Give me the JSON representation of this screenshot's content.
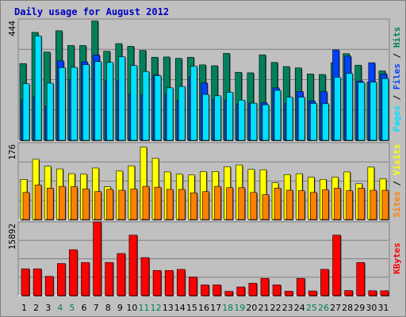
{
  "title": "Daily usage for August 2012",
  "colors": {
    "hits": "#00805c",
    "files": "#0040ff",
    "pages": "#00e0ff",
    "visits": "#ffff00",
    "sites": "#ff8000",
    "kbytes": "#ff0000",
    "weekend_day": "#00805c",
    "weekday": "#000000",
    "panel": "#c0c0c0",
    "grid": "#808080",
    "title": "#0000c0"
  },
  "chart_data": [
    {
      "type": "bar",
      "x": [
        1,
        2,
        3,
        4,
        5,
        6,
        7,
        8,
        9,
        10,
        11,
        12,
        13,
        14,
        15,
        16,
        17,
        18,
        19,
        20,
        21,
        22,
        23,
        24,
        25,
        26,
        27,
        28,
        29,
        30,
        31
      ],
      "weekend_days": [
        4,
        5,
        11,
        12,
        18,
        19,
        25,
        26
      ],
      "ymax_label": "444",
      "ylim": [
        0,
        444
      ],
      "right_label": [
        {
          "text": "Pages",
          "color_key": "pages"
        },
        {
          "text": " / ",
          "color_key": "weekday"
        },
        {
          "text": "Files",
          "color_key": "files"
        },
        {
          "text": " / ",
          "color_key": "weekday"
        },
        {
          "text": "Hits",
          "color_key": "hits"
        }
      ],
      "series": [
        {
          "name": "Hits",
          "color_key": "hits",
          "values": [
            281,
            395,
            323,
            401,
            347,
            347,
            437,
            326,
            354,
            344,
            329,
            304,
            305,
            300,
            304,
            276,
            273,
            318,
            249,
            247,
            313,
            285,
            270,
            265,
            243,
            241,
            284,
            317,
            275,
            213,
            254
          ]
        },
        {
          "name": "Files",
          "color_key": "files",
          "values": [
            148,
            159,
            124,
            291,
            223,
            287,
            312,
            218,
            219,
            169,
            166,
            239,
            170,
            147,
            233,
            210,
            149,
            147,
            133,
            136,
            137,
            192,
            135,
            179,
            144,
            178,
            331,
            308,
            217,
            284,
            243
          ]
        },
        {
          "name": "Pages",
          "color_key": "pages",
          "values": [
            207,
            382,
            209,
            266,
            267,
            277,
            288,
            285,
            306,
            274,
            252,
            237,
            192,
            197,
            271,
            168,
            163,
            176,
            147,
            136,
            130,
            183,
            158,
            158,
            135,
            134,
            231,
            245,
            212,
            213,
            226
          ]
        }
      ]
    },
    {
      "type": "bar",
      "x": [
        1,
        2,
        3,
        4,
        5,
        6,
        7,
        8,
        9,
        10,
        11,
        12,
        13,
        14,
        15,
        16,
        17,
        18,
        19,
        20,
        21,
        22,
        23,
        24,
        25,
        26,
        27,
        28,
        29,
        30,
        31
      ],
      "ymax_label": "176",
      "ylim": [
        0,
        176
      ],
      "right_label": [
        {
          "text": "Sites",
          "color_key": "sites"
        },
        {
          "text": " / ",
          "color_key": "weekday"
        },
        {
          "text": "Visits",
          "color_key": "visits"
        }
      ],
      "series": [
        {
          "name": "Visits",
          "color_key": "visits",
          "values": [
            92,
            138,
            122,
            116,
            105,
            104,
            118,
            75,
            111,
            123,
            166,
            140,
            109,
            104,
            102,
            110,
            110,
            121,
            125,
            115,
            114,
            84,
            103,
            105,
            97,
            92,
            97,
            109,
            82,
            120,
            93
          ]
        },
        {
          "name": "Sites",
          "color_key": "sites",
          "values": [
            62,
            79,
            72,
            76,
            75,
            70,
            64,
            69,
            67,
            70,
            76,
            74,
            69,
            69,
            61,
            64,
            76,
            73,
            73,
            62,
            57,
            72,
            67,
            66,
            62,
            68,
            72,
            66,
            72,
            67,
            67
          ]
        }
      ]
    },
    {
      "type": "bar",
      "x": [
        1,
        2,
        3,
        4,
        5,
        6,
        7,
        8,
        9,
        10,
        11,
        12,
        13,
        14,
        15,
        16,
        17,
        18,
        19,
        20,
        21,
        22,
        23,
        24,
        25,
        26,
        27,
        28,
        29,
        30,
        31
      ],
      "ymax_label": "15892",
      "ylim": [
        0,
        15892
      ],
      "right_label": [
        {
          "text": "KBytes",
          "color_key": "kbytes"
        }
      ],
      "series": [
        {
          "name": "KBytes",
          "color_key": "kbytes",
          "values": [
            5780,
            5780,
            4152,
            6912,
            9900,
            7144,
            15892,
            7144,
            9075,
            13040,
            8200,
            5422,
            5422,
            5656,
            4010,
            2306,
            2306,
            915,
            1875,
            2660,
            3720,
            2306,
            953,
            3720,
            1006,
            5663,
            13040,
            1090,
            7144,
            1048,
            1048
          ]
        }
      ]
    }
  ]
}
